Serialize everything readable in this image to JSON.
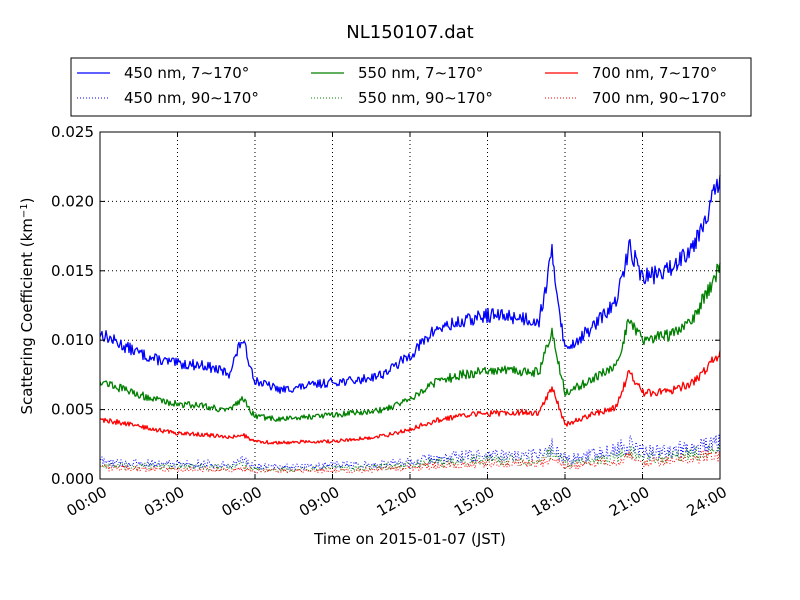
{
  "chart_data": {
    "type": "line",
    "title": "NL150107.dat",
    "xlabel": "Time on 2015-01-07 (JST)",
    "ylabel": "Scattering Coefficient (km",
    "ylabel_sup": "−1",
    "ylabel_close": ")",
    "xlim": [
      "00:00",
      "24:00"
    ],
    "ylim": [
      0.0,
      0.025
    ],
    "grid": true,
    "legend_position": "top",
    "x_ticks": [
      "00:00",
      "03:00",
      "06:00",
      "09:00",
      "12:00",
      "15:00",
      "18:00",
      "21:00",
      "24:00"
    ],
    "y_ticks": [
      "0.000",
      "0.005",
      "0.010",
      "0.015",
      "0.020",
      "0.025"
    ],
    "x": [
      "00:00",
      "01:00",
      "02:00",
      "03:00",
      "04:00",
      "05:00",
      "05:30",
      "06:00",
      "07:00",
      "08:00",
      "09:00",
      "10:00",
      "11:00",
      "12:00",
      "13:00",
      "14:00",
      "15:00",
      "16:00",
      "17:00",
      "17:30",
      "18:00",
      "19:00",
      "20:00",
      "20:30",
      "21:00",
      "22:00",
      "23:00",
      "24:00"
    ],
    "series": [
      {
        "name": "450 nm, 7∼170°",
        "color": "#0000ff",
        "style": "solid",
        "values": [
          0.0105,
          0.0095,
          0.0087,
          0.0083,
          0.0082,
          0.0076,
          0.0101,
          0.0071,
          0.0064,
          0.0067,
          0.007,
          0.0071,
          0.0076,
          0.0089,
          0.0108,
          0.0113,
          0.0118,
          0.0117,
          0.0114,
          0.0162,
          0.0093,
          0.0108,
          0.0128,
          0.0168,
          0.0145,
          0.015,
          0.017,
          0.0215
        ]
      },
      {
        "name": "450 nm, 90∼170°",
        "color": "#0000ff",
        "style": "dotted",
        "values": [
          0.0013,
          0.0011,
          0.0011,
          0.0011,
          0.0011,
          0.001,
          0.0013,
          0.0009,
          0.0009,
          0.0009,
          0.001,
          0.001,
          0.0011,
          0.0012,
          0.0015,
          0.0016,
          0.0017,
          0.0017,
          0.0018,
          0.0024,
          0.0014,
          0.0017,
          0.0021,
          0.0025,
          0.0019,
          0.002,
          0.0023,
          0.0027
        ]
      },
      {
        "name": "550 nm, 7∼170°",
        "color": "#008000",
        "style": "solid",
        "values": [
          0.0071,
          0.0064,
          0.0058,
          0.0054,
          0.0053,
          0.0049,
          0.0058,
          0.0045,
          0.0043,
          0.0045,
          0.0046,
          0.0048,
          0.005,
          0.0058,
          0.007,
          0.0075,
          0.0078,
          0.0078,
          0.0077,
          0.0106,
          0.0062,
          0.0071,
          0.0082,
          0.0117,
          0.01,
          0.0104,
          0.0117,
          0.0153
        ]
      },
      {
        "name": "550 nm, 90∼170°",
        "color": "#008000",
        "style": "dotted",
        "values": [
          0.001,
          0.0009,
          0.0009,
          0.0009,
          0.0009,
          0.0008,
          0.001,
          0.0007,
          0.0007,
          0.0007,
          0.0008,
          0.0008,
          0.0009,
          0.001,
          0.0012,
          0.0013,
          0.0014,
          0.0013,
          0.0014,
          0.0019,
          0.0011,
          0.0013,
          0.0016,
          0.002,
          0.0015,
          0.0016,
          0.0018,
          0.0021
        ]
      },
      {
        "name": "700 nm, 7∼170°",
        "color": "#ff0000",
        "style": "solid",
        "values": [
          0.0043,
          0.004,
          0.0036,
          0.0033,
          0.0032,
          0.003,
          0.0032,
          0.0027,
          0.0026,
          0.0027,
          0.0027,
          0.0029,
          0.0031,
          0.0036,
          0.0042,
          0.0046,
          0.0047,
          0.0048,
          0.0048,
          0.0066,
          0.0039,
          0.0046,
          0.0052,
          0.0078,
          0.0062,
          0.0063,
          0.007,
          0.0091
        ]
      },
      {
        "name": "700 nm, 90∼170°",
        "color": "#ff0000",
        "style": "dotted",
        "values": [
          0.0008,
          0.0008,
          0.0007,
          0.0007,
          0.0007,
          0.0006,
          0.0007,
          0.0006,
          0.0006,
          0.0006,
          0.0006,
          0.0006,
          0.0007,
          0.0008,
          0.001,
          0.001,
          0.0011,
          0.0011,
          0.0011,
          0.0015,
          0.0009,
          0.0011,
          0.0013,
          0.0016,
          0.0012,
          0.0013,
          0.0015,
          0.0017
        ]
      }
    ]
  }
}
